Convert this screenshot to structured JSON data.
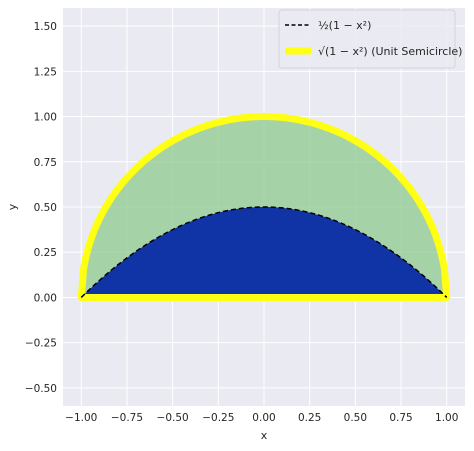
{
  "chart_data": {
    "type": "area",
    "title": "",
    "xlabel": "x",
    "ylabel": "y",
    "xlim": [
      -1.1,
      1.1
    ],
    "ylim": [
      -0.6,
      1.6
    ],
    "xticks": [
      -1.0,
      -0.75,
      -0.5,
      -0.25,
      0.0,
      0.25,
      0.5,
      0.75,
      1.0
    ],
    "xtick_labels": [
      "−1.00",
      "−0.75",
      "−0.50",
      "−0.25",
      "0.00",
      "0.25",
      "0.50",
      "0.75",
      "1.00"
    ],
    "yticks": [
      -0.5,
      -0.25,
      0.0,
      0.25,
      0.5,
      0.75,
      1.0,
      1.25,
      1.5
    ],
    "ytick_labels": [
      "−0.50",
      "−0.25",
      "0.00",
      "0.25",
      "0.50",
      "0.75",
      "1.00",
      "1.25",
      "1.50"
    ],
    "grid": true,
    "legend_position": "top-right",
    "series": [
      {
        "name": "½(1 − x²)",
        "style": "dashed line",
        "color": "#000000",
        "fill_color": "#1034a6",
        "function": "0.5*(1-x^2)",
        "x": [
          -1.0,
          -0.75,
          -0.5,
          -0.25,
          0.0,
          0.25,
          0.5,
          0.75,
          1.0
        ],
        "y": [
          0.0,
          0.22,
          0.375,
          0.47,
          0.5,
          0.47,
          0.375,
          0.22,
          0.0
        ]
      },
      {
        "name": "√(1 − x²) (Unit Semicircle)",
        "style": "thick solid line",
        "color": "#ffff14",
        "fill_color": "#8fc98f",
        "function": "sqrt(1-x^2)",
        "x": [
          -1.0,
          -0.75,
          -0.5,
          -0.25,
          0.0,
          0.25,
          0.5,
          0.75,
          1.0
        ],
        "y": [
          0.0,
          0.66,
          0.87,
          0.97,
          1.0,
          0.97,
          0.87,
          0.66,
          0.0
        ]
      }
    ]
  }
}
